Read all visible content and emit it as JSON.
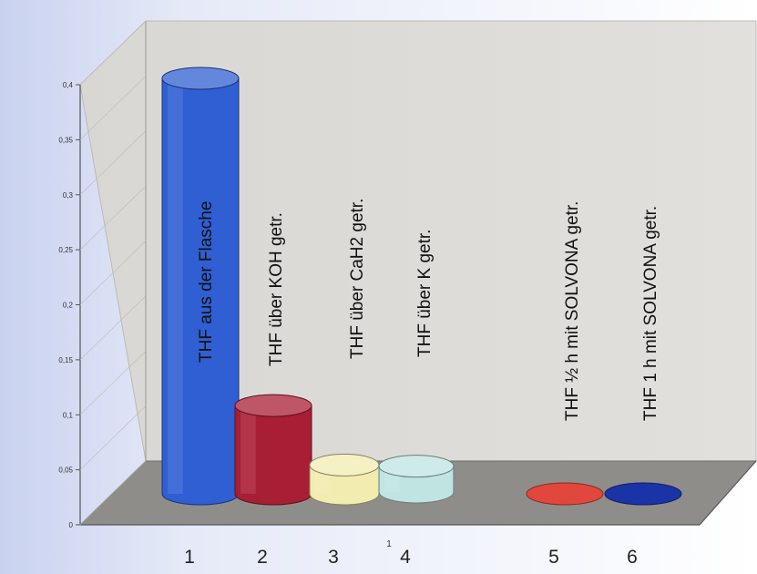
{
  "colors": {
    "background_left": "#d6dcf2",
    "background_right": "#ffffff",
    "back_wall": "#dcdad6",
    "floor": "#8f8d8a",
    "axis": "#555555"
  },
  "chart_data": {
    "type": "bar",
    "style": "3d-cylinder",
    "title": "",
    "xlabel": "",
    "ylabel": "",
    "y_tick_labels": [
      "0",
      "0,05",
      "0,1",
      "0,15",
      "0,2",
      "0,25",
      "0,3",
      "0,35",
      "0,4"
    ],
    "ylim": [
      0,
      0.4
    ],
    "grid": false,
    "categories": [
      "1",
      "2",
      "3",
      "4",
      "5",
      "6"
    ],
    "series": [
      {
        "values": [
          0.4,
          0.085,
          0.012,
          0.008,
          0.0,
          0.0
        ],
        "colors": [
          "#2f5fd2",
          "#a81e34",
          "#f2ecb0",
          "#bfe4e2",
          "#e2473e",
          "#1a33a6"
        ],
        "bar_labels": [
          "THF aus der Flasche",
          "THF über KOH getr.",
          "THF über CaH2 getr.",
          "THF über K getr.",
          "THF ½ h mit SOLVONA getr.",
          "THF 1 h mit SOLVONA getr."
        ]
      }
    ],
    "stray_mark": "1"
  }
}
